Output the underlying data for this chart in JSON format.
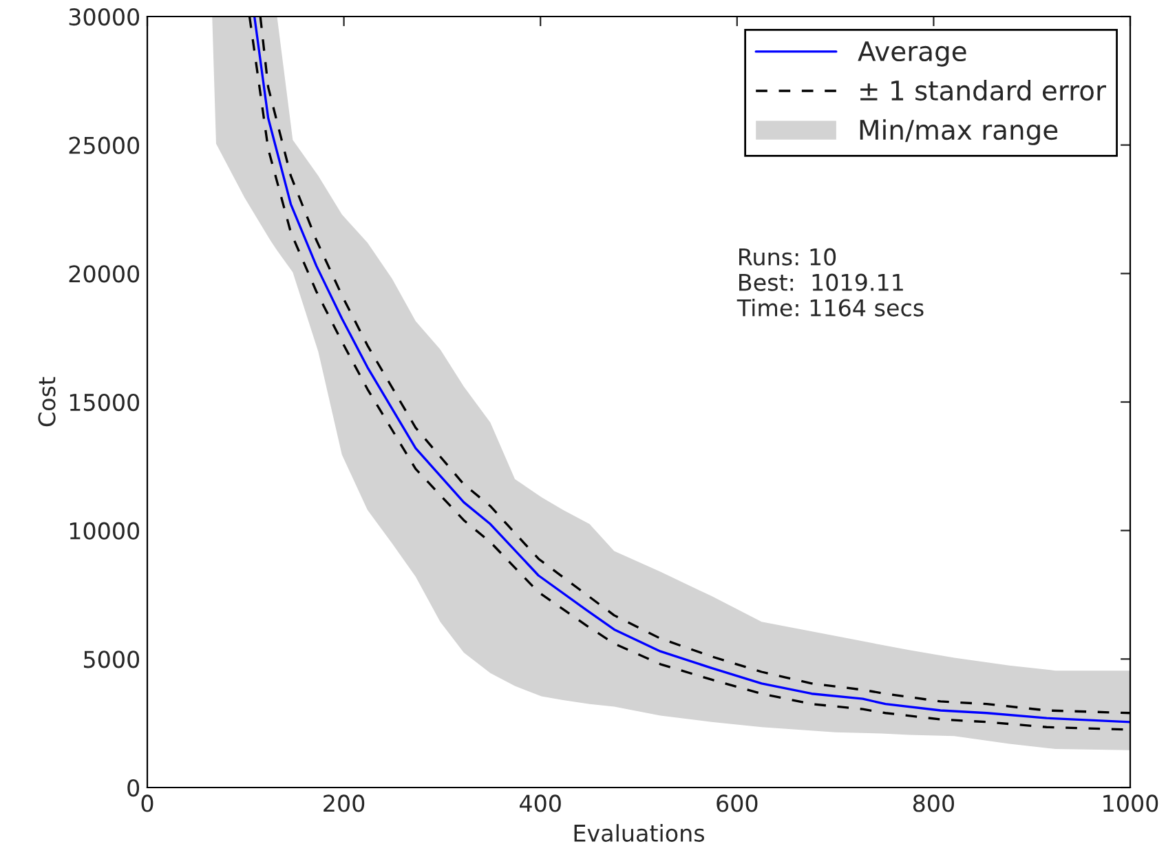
{
  "chart_data": {
    "type": "line",
    "xlabel": "Evaluations",
    "ylabel": "Cost",
    "xlim": [
      0,
      1000
    ],
    "ylim": [
      0,
      30000
    ],
    "xticks": [
      0,
      200,
      400,
      600,
      800,
      1000
    ],
    "yticks": [
      0,
      5000,
      10000,
      15000,
      20000,
      25000,
      30000
    ],
    "grid": false,
    "legend": "top right",
    "annotations": [
      "Runs: 10",
      "Best:  1019.11",
      "Time: 1164 secs"
    ],
    "series": [
      {
        "name": "Min/max range",
        "type": "area",
        "color": "#d3d3d3",
        "x": [
          66,
          70,
          99,
          125,
          132,
          148,
          174,
          198,
          224,
          249,
          273,
          298,
          322,
          349,
          374,
          401,
          423,
          450,
          475,
          522,
          574,
          625,
          700,
          747,
          775,
          821,
          877,
          924,
          1000
        ],
        "values": [
          null,
          null,
          null,
          null,
          null,
          null,
          null,
          null,
          null,
          null,
          null,
          null,
          null,
          null,
          null,
          null,
          null,
          null,
          null,
          null,
          null,
          null,
          null,
          null,
          null,
          null,
          null,
          null,
          null
        ],
        "upper": [
          30000,
          30000,
          30000,
          30000,
          30000,
          25200,
          23800,
          22300,
          21200,
          19800,
          18150,
          17050,
          15600,
          14200,
          12000,
          11300,
          10800,
          10250,
          9200,
          8400,
          7450,
          6450,
          5900,
          5550,
          5350,
          5050,
          4750,
          4550,
          4550
        ],
        "lower": [
          30000,
          25050,
          22950,
          21300,
          20900,
          20050,
          16950,
          12950,
          10800,
          9500,
          8200,
          6450,
          5250,
          4450,
          3950,
          3550,
          3400,
          3250,
          3150,
          2800,
          2550,
          2350,
          2150,
          2100,
          2050,
          2000,
          1700,
          1500,
          1450
        ]
      },
      {
        "name": "± 1 standard error",
        "line_style": "dashed",
        "color": "#000000",
        "x": [
          115,
          123,
          146,
          172,
          198,
          224,
          273,
          322,
          349,
          398,
          447,
          475,
          522,
          574,
          625,
          676,
          728,
          751,
          807,
          854,
          915,
          1000
        ],
        "values": [
          30000,
          27250,
          23800,
          21300,
          19150,
          17200,
          14000,
          11800,
          10950,
          8900,
          7500,
          6700,
          5800,
          5100,
          4500,
          4050,
          3800,
          3650,
          3350,
          3250,
          3000,
          2900
        ]
      },
      {
        "line_style": "dashed",
        "color": "#000000",
        "x": [
          104,
          123,
          146,
          172,
          198,
          224,
          273,
          322,
          349,
          398,
          447,
          475,
          522,
          574,
          625,
          676,
          728,
          751,
          807,
          854,
          915,
          1000
        ],
        "values": [
          30000,
          24850,
          21600,
          19300,
          17350,
          15500,
          12400,
          10400,
          9550,
          7600,
          6300,
          5600,
          4800,
          4200,
          3650,
          3250,
          3050,
          2900,
          2650,
          2550,
          2350,
          2250
        ]
      },
      {
        "name": "Average",
        "line_style": "solid",
        "color": "#0000ff",
        "x": [
          109,
          123,
          146,
          172,
          198,
          224,
          273,
          322,
          349,
          398,
          447,
          475,
          522,
          574,
          625,
          676,
          728,
          751,
          807,
          854,
          915,
          1000
        ],
        "values": [
          30000,
          26050,
          22700,
          20300,
          18250,
          16350,
          13200,
          11100,
          10250,
          8250,
          6900,
          6150,
          5300,
          4650,
          4050,
          3650,
          3450,
          3250,
          3000,
          2900,
          2700,
          2550
        ]
      }
    ]
  }
}
